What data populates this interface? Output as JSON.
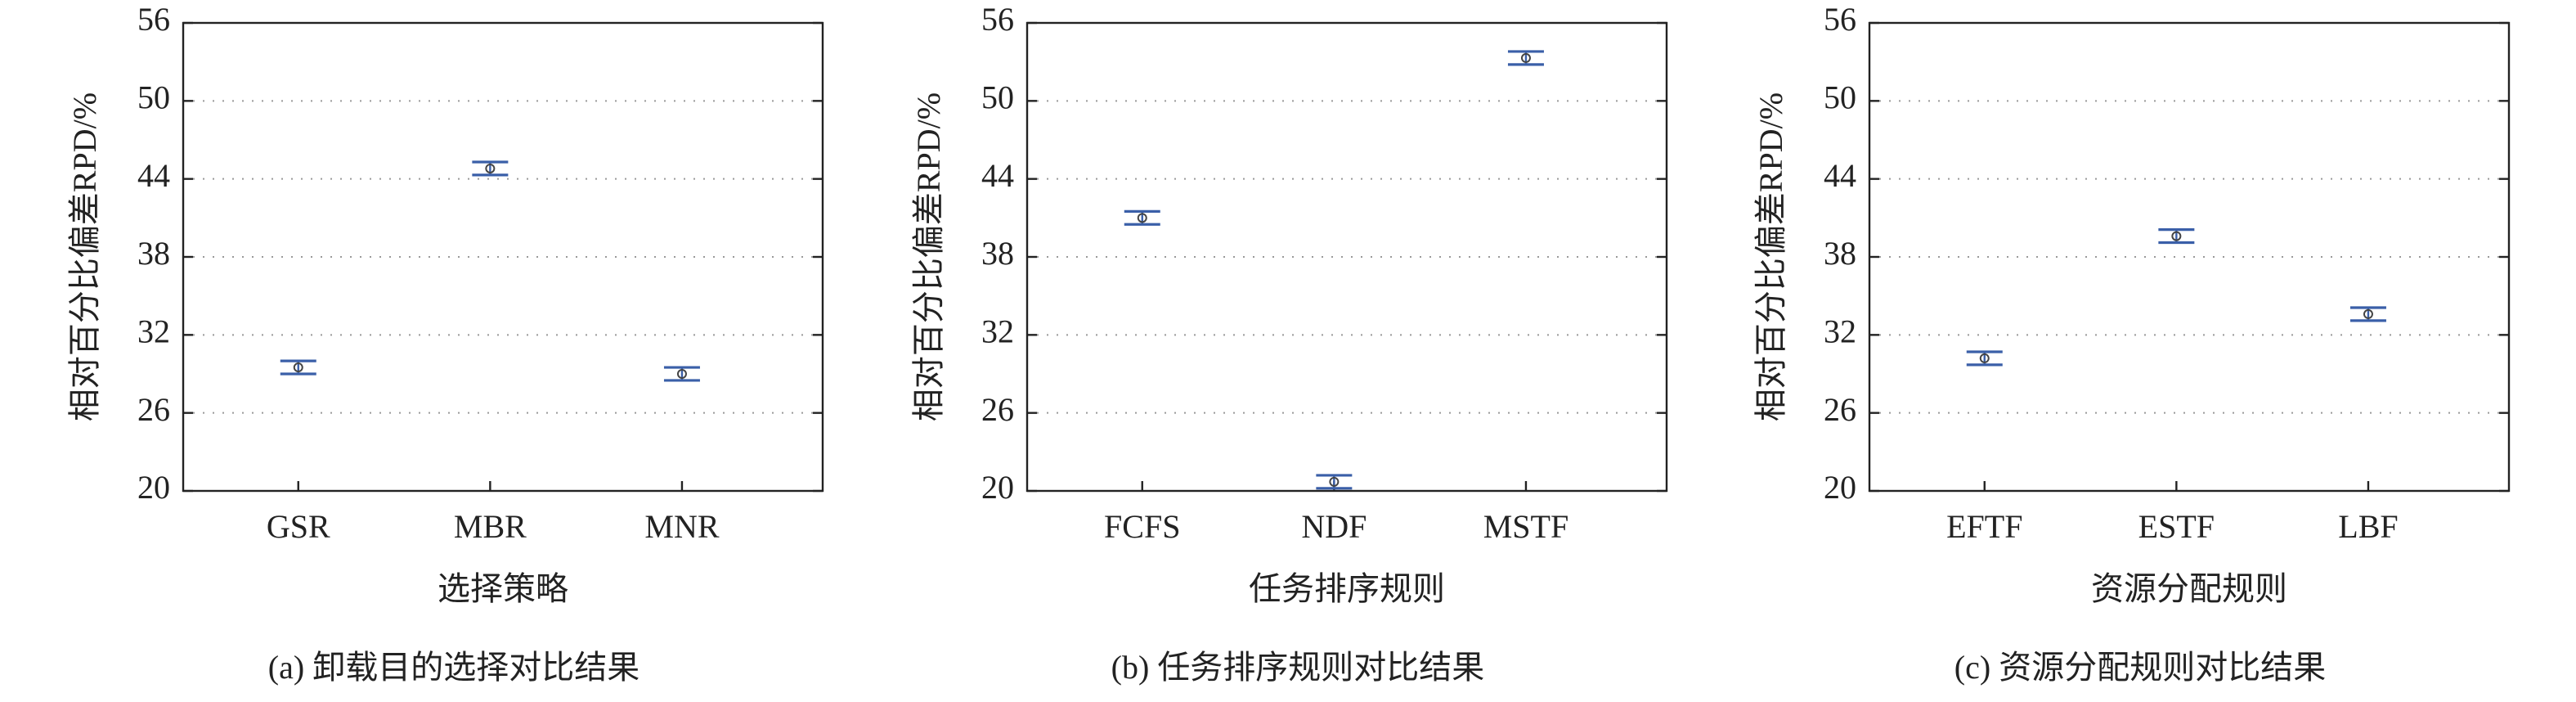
{
  "chart_data": [
    {
      "type": "errorbar",
      "ylabel": "相对百分比偏差RPD/%",
      "xlabel": "选择策略",
      "caption": "(a) 卸载目的选择对比结果",
      "categories": [
        "GSR",
        "MBR",
        "MNR"
      ],
      "values": [
        29.5,
        44.8,
        29.0
      ],
      "errors": [
        0.5,
        0.5,
        0.5
      ],
      "color": "#3a5fa8",
      "ylim": [
        20,
        56
      ],
      "yticks": [
        20,
        26,
        32,
        38,
        44,
        50,
        56
      ],
      "grid": true
    },
    {
      "type": "errorbar",
      "ylabel": "相对百分比偏差RPD/%",
      "xlabel": "任务排序规则",
      "caption": "(b) 任务排序规则对比结果",
      "categories": [
        "FCFS",
        "NDF",
        "MSTF"
      ],
      "values": [
        41.0,
        20.7,
        53.3
      ],
      "errors": [
        0.5,
        0.5,
        0.5
      ],
      "color": "#3a5fa8",
      "ylim": [
        20,
        56
      ],
      "yticks": [
        20,
        26,
        32,
        38,
        44,
        50,
        56
      ],
      "grid": true
    },
    {
      "type": "errorbar",
      "ylabel": "相对百分比偏差RPD/%",
      "xlabel": "资源分配规则",
      "caption": "(c) 资源分配规则对比结果",
      "categories": [
        "EFTF",
        "ESTF",
        "LBF"
      ],
      "values": [
        30.2,
        39.6,
        33.6
      ],
      "errors": [
        0.5,
        0.5,
        0.5
      ],
      "color": "#3a5fa8",
      "ylim": [
        20,
        56
      ],
      "yticks": [
        20,
        26,
        32,
        38,
        44,
        50,
        56
      ],
      "grid": true
    }
  ]
}
